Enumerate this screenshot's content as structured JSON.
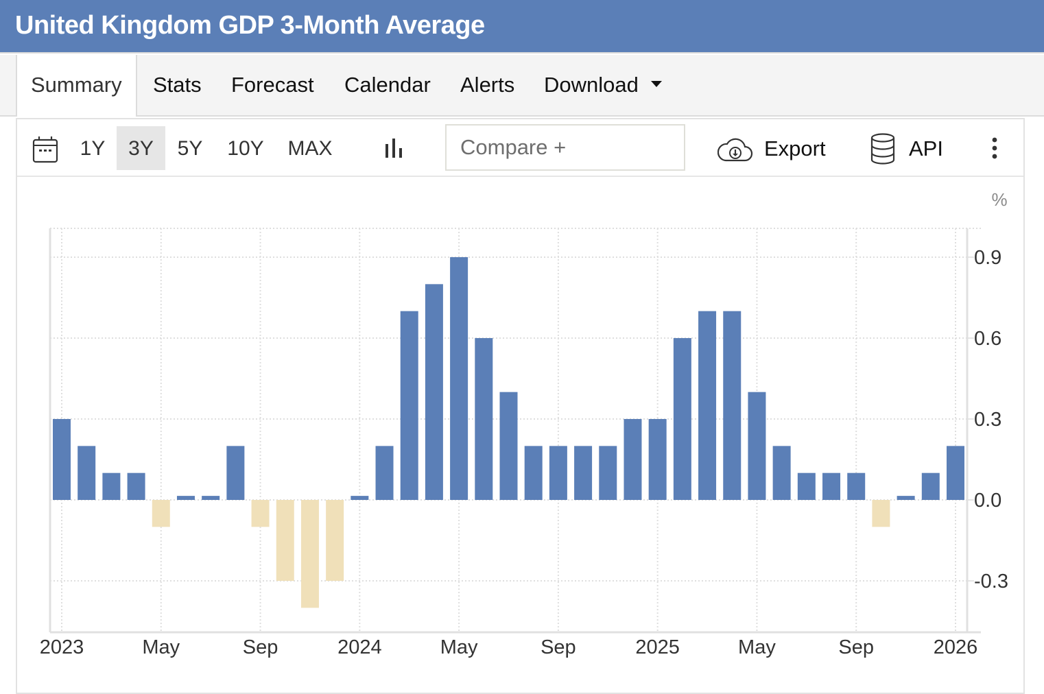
{
  "header": {
    "title": "United Kingdom GDP 3-Month Average"
  },
  "tabs": [
    {
      "label": "Summary",
      "active": true
    },
    {
      "label": "Stats"
    },
    {
      "label": "Forecast"
    },
    {
      "label": "Calendar"
    },
    {
      "label": "Alerts"
    },
    {
      "label": "Download",
      "dropdown": true
    }
  ],
  "toolbar": {
    "ranges": [
      "1Y",
      "3Y",
      "5Y",
      "10Y",
      "MAX"
    ],
    "active_range": "3Y",
    "compare_placeholder": "Compare +",
    "export_label": "Export",
    "api_label": "API"
  },
  "colors": {
    "header_bg": "#5b7fb7",
    "positive_bar": "#5b7fb7",
    "negative_bar": "#f0e0b9"
  },
  "chart_data": {
    "type": "bar",
    "title": "United Kingdom GDP 3-Month Average",
    "ylabel": "%",
    "xlabel": "",
    "ylim": [
      -0.45,
      1.0
    ],
    "yticks": [
      "0.9",
      "0.6",
      "0.3",
      "0.0",
      "-0.3"
    ],
    "ytick_values": [
      0.9,
      0.6,
      0.3,
      0.0,
      -0.3
    ],
    "xtick_labels": [
      "2023",
      "May",
      "Sep",
      "2024",
      "May",
      "Sep",
      "2025",
      "May",
      "Sep",
      "2026"
    ],
    "xtick_month_index": [
      0,
      4,
      8,
      12,
      16,
      20,
      24,
      28,
      32,
      36
    ],
    "grid": true,
    "categories": [
      "Jan 2023",
      "Feb 2023",
      "Mar 2023",
      "Apr 2023",
      "May 2023",
      "Jun 2023",
      "Jul 2023",
      "Aug 2023",
      "Sep 2023",
      "Oct 2023",
      "Nov 2023",
      "Dec 2023",
      "Jan 2024",
      "Feb 2024",
      "Mar 2024",
      "Apr 2024",
      "May 2024",
      "Jun 2024",
      "Jul 2024",
      "Aug 2024",
      "Sep 2024",
      "Oct 2024",
      "Nov 2024",
      "Dec 2024",
      "Jan 2025",
      "Feb 2025",
      "Mar 2025",
      "Apr 2025",
      "May 2025",
      "Jun 2025",
      "Jul 2025",
      "Aug 2025",
      "Sep 2025",
      "Oct 2025",
      "Nov 2025",
      "Dec 2025",
      "Jan 2026"
    ],
    "values": [
      0.3,
      0.2,
      0.1,
      0.1,
      -0.1,
      0.0,
      0.0,
      0.2,
      -0.1,
      -0.3,
      -0.4,
      -0.3,
      0.0,
      0.2,
      0.7,
      0.8,
      0.9,
      0.6,
      0.4,
      0.2,
      0.2,
      0.2,
      0.2,
      0.3,
      0.3,
      0.6,
      0.7,
      0.7,
      0.4,
      0.2,
      0.1,
      0.1,
      0.1,
      -0.1,
      0.0,
      0.1,
      0.2
    ]
  }
}
